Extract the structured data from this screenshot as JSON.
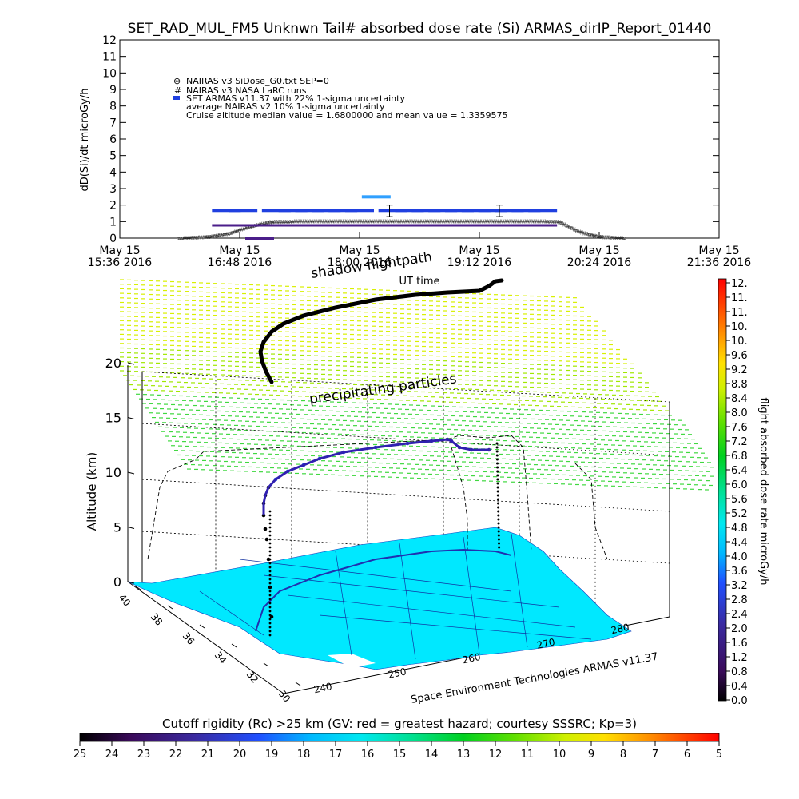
{
  "title": "SET_RAD_MUL_FM5 Unknwn Tail#  absorbed dose rate (Si) ARMAS_dirIP_Report_01440",
  "top_chart": {
    "ylabel": "dD(Si)/dt microGy/h",
    "xlabel": "UT time",
    "y_ticks": [
      "0",
      "1",
      "2",
      "3",
      "4",
      "5",
      "6",
      "7",
      "8",
      "9",
      "10",
      "11",
      "12"
    ],
    "x_ticks": [
      {
        "l1": "May 15",
        "l2": "15:36 2016"
      },
      {
        "l1": "May 15",
        "l2": "16:48 2016"
      },
      {
        "l1": "May 15",
        "l2": "18:00 2016"
      },
      {
        "l1": "May 15",
        "l2": "19:12 2016"
      },
      {
        "l1": "May 15",
        "l2": "20:24 2016"
      },
      {
        "l1": "May 15",
        "l2": "21:36 2016"
      }
    ],
    "legend": [
      "NAIRAS v3 SiDose_G0.txt SEP=0",
      "NAIRAS v3 NASA LaRC runs",
      "SET ARMAS v11.37 with 22% 1-sigma uncertainty",
      "average NAIRAS v2 10% 1-sigma uncertainty",
      "Cruise altitude median value = 1.6800000 and mean value = 1.3359575"
    ]
  },
  "chart_data": [
    {
      "type": "scatter",
      "title": "SET_RAD_MUL_FM5 Unknwn Tail#  absorbed dose rate (Si) ARMAS_dirIP_Report_01440",
      "xlabel": "UT time",
      "ylabel": "dD(Si)/dt microGy/h",
      "xlim": [
        "2016-05-15 15:36",
        "2016-05-15 21:36"
      ],
      "ylim": [
        0,
        12
      ],
      "series": [
        {
          "name": "NAIRAS v3 SiDose_G0.txt SEP=0",
          "x": [
            "16:12",
            "16:30",
            "16:42",
            "16:54",
            "17:06",
            "17:30",
            "18:00",
            "18:30",
            "19:00",
            "19:30",
            "19:45",
            "20:00",
            "20:12",
            "20:24",
            "20:40"
          ],
          "values": [
            0.0,
            0.1,
            0.3,
            0.6,
            0.9,
            1.0,
            1.0,
            1.0,
            1.0,
            1.0,
            1.0,
            1.0,
            0.4,
            0.1,
            0.0
          ]
        },
        {
          "name": "NAIRAS v3 NASA LaRC runs",
          "x": [
            "16:12",
            "16:30",
            "16:42",
            "16:54",
            "17:06",
            "17:30",
            "18:00",
            "18:30",
            "19:00",
            "19:30",
            "19:45",
            "20:00",
            "20:12",
            "20:24",
            "20:40"
          ],
          "values": [
            0.0,
            0.1,
            0.3,
            0.7,
            1.0,
            1.05,
            1.05,
            1.05,
            1.05,
            1.05,
            1.05,
            1.0,
            0.4,
            0.1,
            0.0
          ]
        },
        {
          "name": "SET ARMAS v11.37 with 22% 1-sigma uncertainty",
          "x": [
            "16:40",
            "16:50",
            "17:00",
            "17:10",
            "17:20",
            "17:30",
            "17:40",
            "17:50",
            "18:00",
            "18:10",
            "18:20",
            "18:30",
            "18:40",
            "18:50",
            "19:00",
            "19:10",
            "19:20",
            "19:30",
            "19:40",
            "19:50"
          ],
          "values": [
            1.68,
            1.68,
            0.0,
            1.68,
            1.68,
            1.68,
            1.68,
            1.68,
            1.68,
            2.5,
            1.68,
            1.68,
            1.68,
            1.68,
            1.68,
            1.68,
            1.68,
            1.68,
            1.68,
            1.68
          ]
        }
      ]
    },
    {
      "type": "scatter",
      "xlabel": "",
      "ylabel": "Altitude (km)",
      "zlim": [
        0,
        20
      ],
      "z_ticks": [
        "0",
        "5",
        "10",
        "15",
        "20"
      ],
      "lat_ticks": [
        "40",
        "38",
        "36",
        "34",
        "32",
        "30"
      ],
      "lon_ticks": [
        "240",
        "250",
        "260",
        "270",
        "280"
      ]
    }
  ],
  "map3d": {
    "ylabel": "Altitude (km)",
    "z_ticks": [
      "0",
      "5",
      "10",
      "15",
      "20"
    ],
    "lat_ticks": [
      "40",
      "38",
      "36",
      "34",
      "32",
      "30"
    ],
    "lon_ticks": [
      "240",
      "250",
      "260",
      "270",
      "280"
    ],
    "labels": {
      "shadow": "shadow flightpath",
      "precip": "precipitating particles",
      "credit": "Space Environment Technologies ARMAS v11.37"
    }
  },
  "colorbar_right": {
    "label": "flight absorbed dose rate microGy/h",
    "ticks": [
      "12.",
      "11.",
      "11.",
      "10.",
      "10.",
      "9.6",
      "9.2",
      "8.8",
      "8.4",
      "8.0",
      "7.6",
      "7.2",
      "6.8",
      "6.4",
      "6.0",
      "5.6",
      "5.2",
      "4.8",
      "4.4",
      "4.0",
      "3.6",
      "3.2",
      "2.8",
      "2.4",
      "2.0",
      "1.6",
      "1.2",
      "0.8",
      "0.4",
      "0.0"
    ]
  },
  "colorbar_bottom": {
    "title": "Cutoff rigidity (Rc) >25 km (GV: red = greatest hazard; courtesy SSSRC; Kp=3)",
    "ticks": [
      "25",
      "24",
      "23",
      "22",
      "21",
      "20",
      "19",
      "18",
      "17",
      "16",
      "15",
      "14",
      "13",
      "12",
      "11",
      "10",
      "9",
      "8",
      "7",
      "6",
      "5"
    ]
  },
  "colors": {
    "nairas": "#3a3a3a",
    "armas": "#2040e0",
    "armas_low": "#4b1e8a",
    "map_fill": "#00e8ff",
    "grid_dash": "#000000"
  }
}
